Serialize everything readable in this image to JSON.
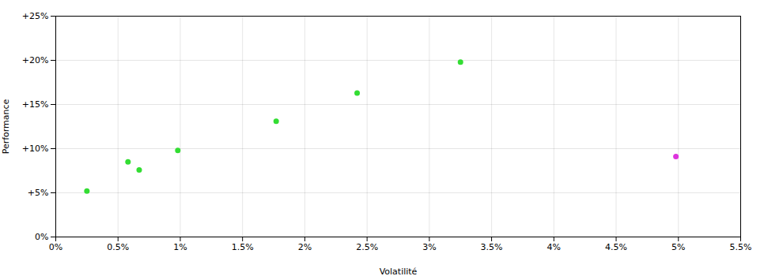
{
  "chart_data": {
    "type": "scatter",
    "xlabel": "Volatilité",
    "ylabel": "Performance",
    "xlim": [
      0,
      5.5
    ],
    "ylim": [
      0,
      25
    ],
    "xticks": [
      {
        "value": 0,
        "label": "0%"
      },
      {
        "value": 0.5,
        "label": "0.5%"
      },
      {
        "value": 1.0,
        "label": "1%"
      },
      {
        "value": 1.5,
        "label": "1.5%"
      },
      {
        "value": 2.0,
        "label": "2%"
      },
      {
        "value": 2.5,
        "label": "2.5%"
      },
      {
        "value": 3.0,
        "label": "3%"
      },
      {
        "value": 3.5,
        "label": "3.5%"
      },
      {
        "value": 4.0,
        "label": "4%"
      },
      {
        "value": 4.5,
        "label": "4.5%"
      },
      {
        "value": 5.0,
        "label": "5%"
      },
      {
        "value": 5.5,
        "label": "5.5%"
      }
    ],
    "yticks": [
      {
        "value": 0,
        "label": "0%"
      },
      {
        "value": 5,
        "label": "+5%"
      },
      {
        "value": 10,
        "label": "+10%"
      },
      {
        "value": 15,
        "label": "+15%"
      },
      {
        "value": 20,
        "label": "+20%"
      },
      {
        "value": 25,
        "label": "+25%"
      }
    ],
    "grid": true,
    "series": [
      {
        "color": "#33dd33",
        "x": [
          0.25,
          0.58,
          0.67,
          0.98,
          1.77,
          2.42,
          3.25
        ],
        "values": [
          5.2,
          8.5,
          7.6,
          9.8,
          13.1,
          16.3,
          19.8
        ]
      },
      {
        "color": "#dd33dd",
        "x": [
          4.98
        ],
        "values": [
          9.1
        ]
      }
    ]
  }
}
